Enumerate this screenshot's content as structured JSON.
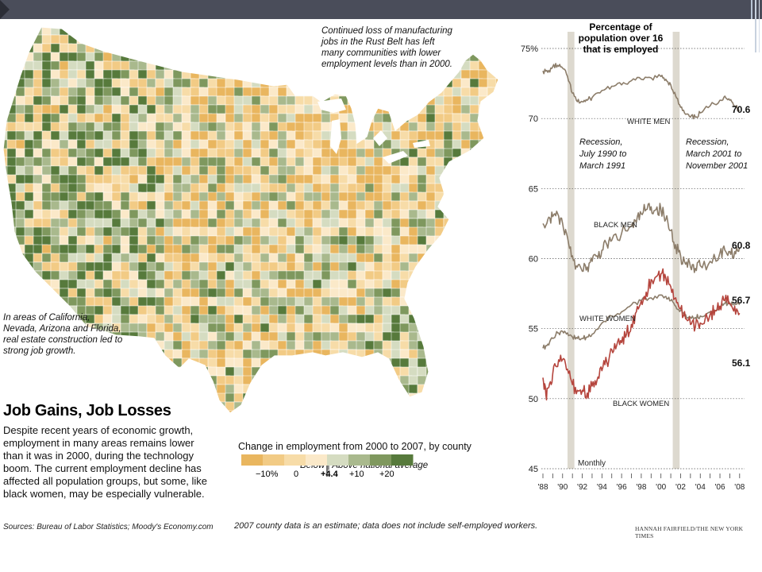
{
  "map": {
    "note_rustbelt": [
      "Continued loss of manufacturing",
      "jobs in the Rust Belt has left",
      "many communities with lower",
      "employment levels than in 2000."
    ],
    "note_west": [
      "In areas of California,",
      "Nevada, Arizona and Florida,",
      "real estate construction led to",
      "strong job growth."
    ]
  },
  "article": {
    "headline": "Job Gains, Job Losses",
    "body": "Despite recent years of economic growth, employment in many areas remains lower than it was in 2000, during the technology boom. The current employment decline has affected all population groups, but some, like black women, may be especially vulnerable.",
    "sources": "Sources: Bureau of Labor Statistics; Moody's Economy.com"
  },
  "legend": {
    "title": "Change in employment from 2000 to 2007, by county",
    "below_label": "Below",
    "above_label": "Above national average",
    "ticks": [
      "−10%",
      "0",
      "+4.4",
      "+10",
      "+20"
    ],
    "colors": [
      "#e9b65f",
      "#f2cb85",
      "#f7dca8",
      "#fbe9c9",
      "#d5dcc1",
      "#a9b98d",
      "#7f985e",
      "#577a3c"
    ]
  },
  "footnote": "2007 county data is an estimate; data does not include self-employed workers.",
  "credit": "HANNAH FAIRFIELD/THE NEW YORK TIMES",
  "colors": {
    "header_bar": "#4a4d5a",
    "recession": "#ddd9cf",
    "grey_line": "#8c7d6a",
    "red_line": "#b5453d"
  },
  "chart_data": {
    "type": "line",
    "title": "Percentage of population over 16 that is employed",
    "ylabel": "",
    "xlabel": "",
    "ylim": [
      45,
      75
    ],
    "yticks": [
      45,
      50,
      55,
      60,
      65,
      70,
      75
    ],
    "ytick_labels": [
      "45",
      "50",
      "55",
      "60",
      "65",
      "70",
      "75%"
    ],
    "xlim": [
      1988,
      2008.5
    ],
    "xticks": [
      1988,
      1990,
      1992,
      1994,
      1996,
      1998,
      2000,
      2002,
      2004,
      2006,
      2008
    ],
    "xtick_labels": [
      "'88",
      "'90",
      "'92",
      "'94",
      "'96",
      "'98",
      "'00",
      "'02",
      "'04",
      "'06",
      "'08"
    ],
    "frequency_label": "Monthly",
    "recessions": [
      {
        "start": 1990.5,
        "end": 1991.2,
        "label": [
          "Recession,",
          "July 1990 to",
          "March 1991"
        ]
      },
      {
        "start": 2001.2,
        "end": 2001.9,
        "label": [
          "Recession,",
          "March 2001 to",
          "November 2001"
        ]
      }
    ],
    "series": [
      {
        "name": "WHITE MEN",
        "end_label": "70.6",
        "x": [
          1988,
          1988.5,
          1989,
          1989.5,
          1990,
          1990.5,
          1991,
          1991.5,
          1992,
          1992.5,
          1993,
          1994,
          1995,
          1996,
          1997,
          1998,
          1999,
          2000,
          2000.5,
          2001,
          2001.5,
          2002,
          2002.5,
          2003,
          2003.5,
          2004,
          2005,
          2006,
          2006.5,
          2007,
          2007.5,
          2008
        ],
        "y": [
          73.4,
          73.3,
          73.7,
          73.8,
          73.6,
          73.0,
          71.8,
          71.2,
          71.2,
          71.3,
          71.5,
          72.0,
          72.3,
          72.4,
          72.7,
          72.8,
          72.9,
          73.0,
          72.8,
          72.4,
          71.6,
          70.8,
          70.3,
          70.1,
          70.1,
          70.4,
          70.9,
          71.3,
          71.6,
          71.3,
          70.9,
          70.6
        ]
      },
      {
        "name": "BLACK MEN",
        "end_label": "60.8",
        "x": [
          1988,
          1988.5,
          1989,
          1989.5,
          1990,
          1990.5,
          1991,
          1991.5,
          1992,
          1992.5,
          1993,
          1993.5,
          1994,
          1994.5,
          1995,
          1996,
          1997,
          1997.5,
          1998,
          1998.5,
          1999,
          1999.5,
          2000,
          2000.5,
          2001,
          2001.5,
          2002,
          2002.5,
          2003,
          2003.5,
          2004,
          2005,
          2006,
          2006.5,
          2007,
          2007.5,
          2008
        ],
        "y": [
          62.5,
          62.8,
          63.0,
          63.2,
          62.5,
          61.5,
          60.2,
          59.4,
          59.1,
          59.4,
          59.8,
          60.2,
          60.6,
          61.0,
          61.3,
          61.8,
          62.3,
          62.6,
          63.2,
          63.5,
          63.7,
          63.5,
          63.5,
          62.8,
          62.0,
          61.0,
          60.2,
          59.6,
          59.4,
          59.3,
          59.5,
          59.8,
          60.4,
          60.6,
          60.5,
          60.5,
          60.8
        ]
      },
      {
        "name": "WHITE WOMEN",
        "end_label": "56.7",
        "x": [
          1988,
          1988.5,
          1989,
          1989.5,
          1990,
          1990.5,
          1991,
          1991.5,
          1992,
          1992.5,
          1993,
          1994,
          1995,
          1996,
          1997,
          1998,
          1999,
          2000,
          2000.5,
          2001,
          2001.5,
          2002,
          2002.5,
          2003,
          2003.5,
          2004,
          2005,
          2006,
          2006.5,
          2007,
          2007.5,
          2008
        ],
        "y": [
          53.6,
          53.9,
          54.3,
          54.7,
          54.8,
          54.7,
          54.4,
          54.3,
          54.3,
          54.4,
          54.6,
          55.4,
          55.9,
          56.2,
          56.7,
          57.0,
          57.2,
          57.4,
          57.3,
          57.0,
          56.6,
          56.3,
          56.0,
          55.8,
          55.8,
          55.9,
          56.2,
          56.6,
          56.8,
          56.8,
          56.7,
          56.7
        ]
      },
      {
        "name": "BLACK WOMEN",
        "end_label": "56.1",
        "x": [
          1988,
          1988.3,
          1988.6,
          1989,
          1989.5,
          1990,
          1990.5,
          1991,
          1991.5,
          1992,
          1992.5,
          1993,
          1993.5,
          1994,
          1994.5,
          1995,
          1995.5,
          1996,
          1996.5,
          1997,
          1997.5,
          1998,
          1998.5,
          1999,
          1999.5,
          2000,
          2000.5,
          2001,
          2001.5,
          2002,
          2002.5,
          2003,
          2003.5,
          2004,
          2005,
          2005.5,
          2006,
          2006.5,
          2007,
          2007.5,
          2008
        ],
        "y": [
          51.5,
          50.3,
          50.8,
          51.8,
          52.3,
          52.8,
          52.1,
          51.0,
          50.6,
          50.6,
          50.4,
          50.9,
          51.3,
          52.0,
          52.6,
          53.5,
          53.8,
          54.0,
          54.6,
          55.3,
          56.2,
          57.0,
          57.6,
          58.5,
          58.7,
          58.9,
          58.6,
          58.0,
          57.2,
          56.4,
          55.7,
          55.3,
          55.1,
          55.4,
          56.0,
          56.3,
          56.6,
          57.0,
          56.8,
          56.6,
          56.1
        ]
      }
    ]
  }
}
